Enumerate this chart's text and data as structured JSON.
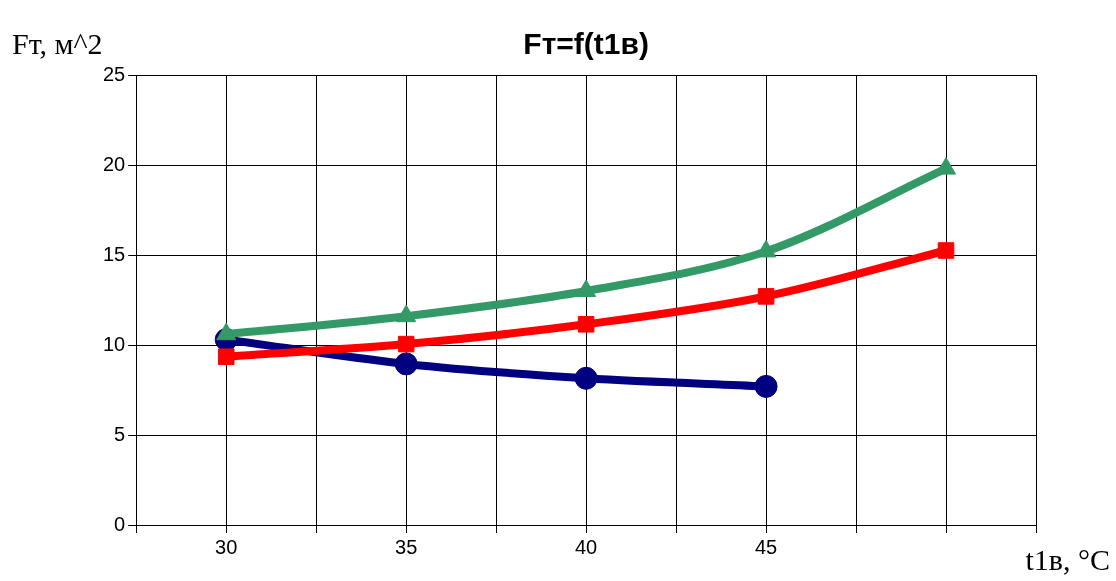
{
  "chart_data": {
    "type": "line",
    "title": "Fт=f(t1в)",
    "xlabel": "t1в, °C",
    "ylabel": "Fт, м^2",
    "x": [
      30,
      35,
      40,
      45,
      50
    ],
    "series": [
      {
        "color": "#000080",
        "marker": "circle",
        "values": [
          10.3,
          8.95,
          8.15,
          7.7,
          null
        ]
      },
      {
        "color": "#ff0000",
        "marker": "square",
        "values": [
          9.35,
          10.05,
          11.15,
          12.7,
          15.25
        ]
      },
      {
        "color": "#339966",
        "marker": "triangle",
        "values": [
          10.6,
          11.6,
          13.0,
          15.2,
          19.8
        ]
      }
    ],
    "xlim": [
      27.5,
      52.5
    ],
    "xticks": [
      {
        "value": 27.5,
        "label": null
      },
      30,
      {
        "value": 32.5,
        "label": null
      },
      35,
      {
        "value": 37.5,
        "label": null
      },
      40,
      {
        "value": 42.5,
        "label": null
      },
      45,
      {
        "value": 47.5,
        "label": null
      },
      {
        "value": 50,
        "label": null
      },
      {
        "value": 52.5,
        "label": null
      }
    ],
    "ylim": [
      0,
      25
    ],
    "yticks": [
      0,
      5,
      10,
      15,
      20,
      25
    ],
    "grid": true,
    "legend": false,
    "line_style": "solid"
  }
}
